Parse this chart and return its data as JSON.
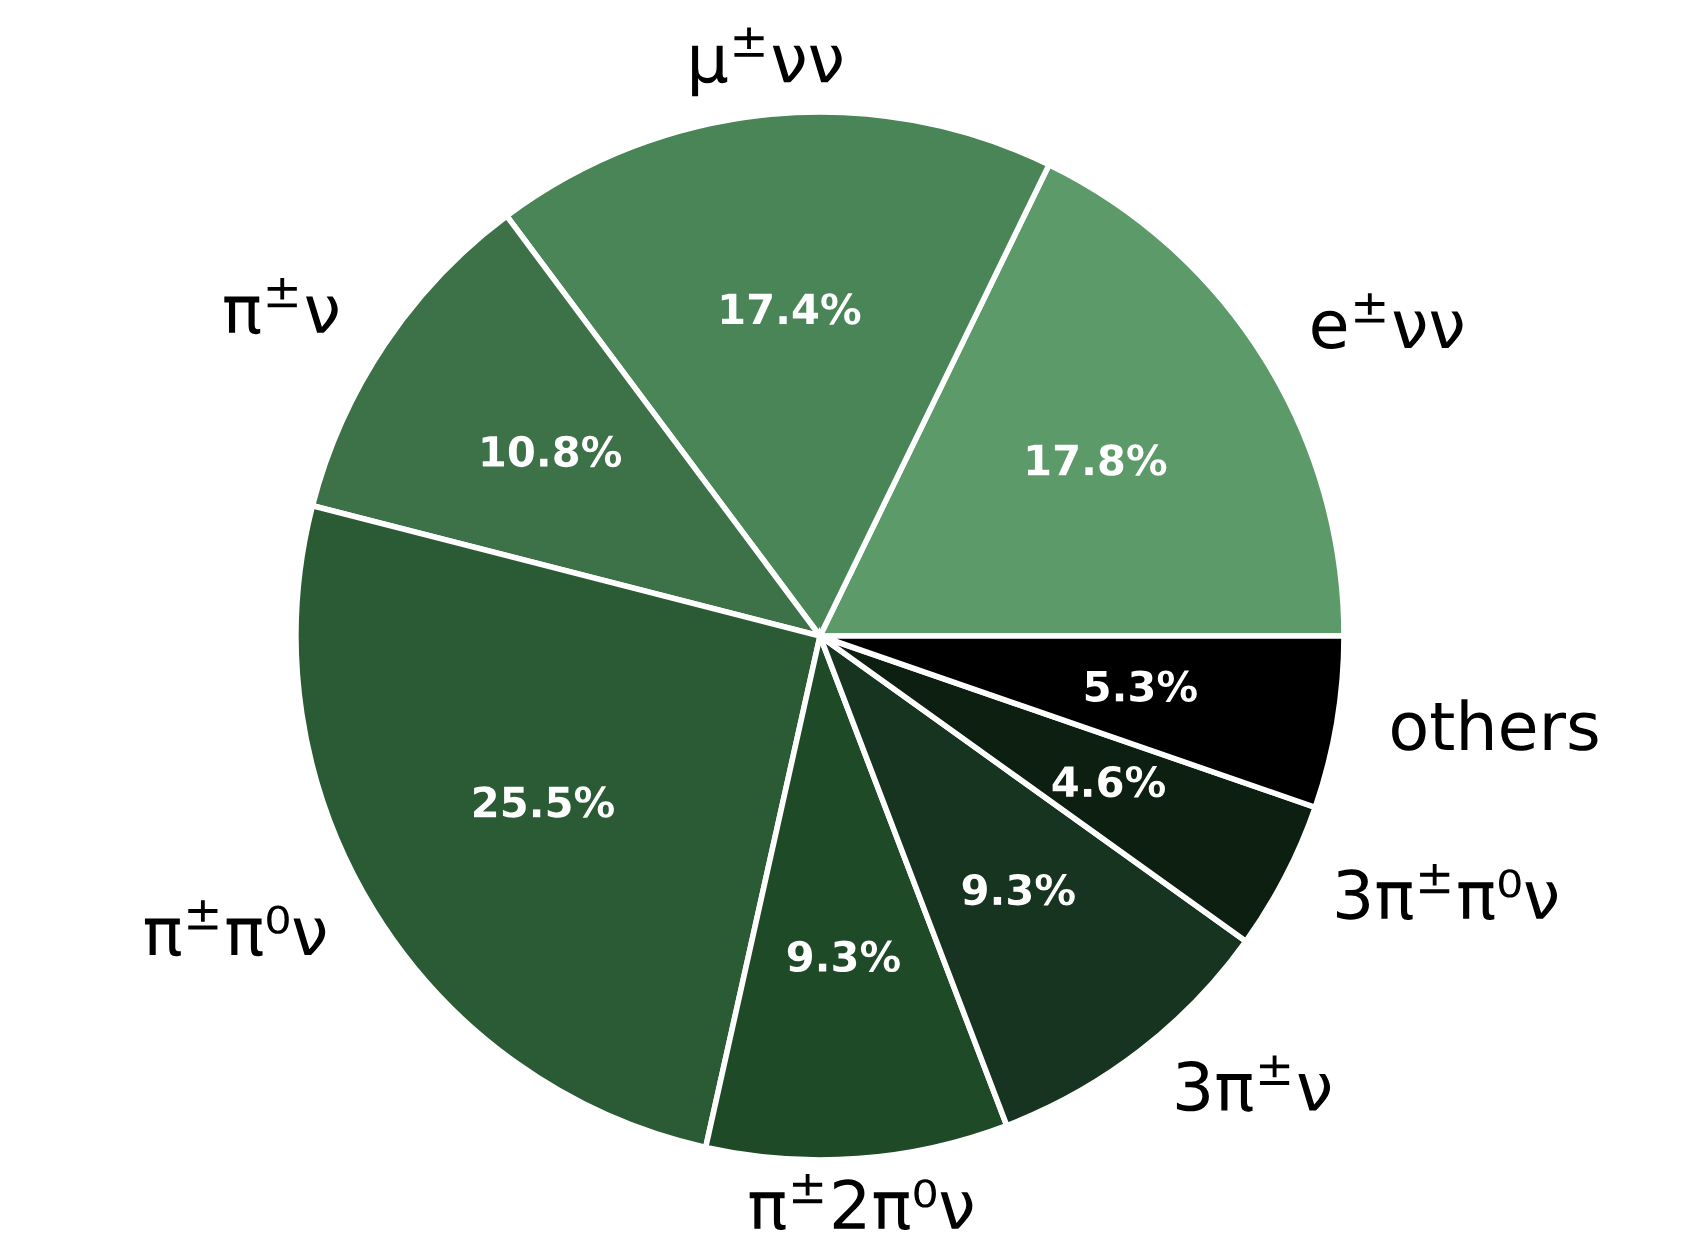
{
  "chart_data": {
    "type": "pie",
    "categories": [
      "e$^{±}$νν",
      "μ$^{±}$νν",
      "π$^{±}$ν",
      "π$^{±}$π⁰ν",
      "π$^{±}$2π⁰ν",
      "3π$^{±}$ν",
      "3π$^{±}$π⁰ν",
      "others"
    ],
    "values": [
      17.8,
      17.4,
      10.8,
      25.5,
      9.3,
      9.3,
      4.6,
      5.3
    ],
    "value_labels": [
      "17.8%",
      "17.4%",
      "10.8%",
      "25.5%",
      "9.3%",
      "9.3%",
      "4.6%",
      "5.3%"
    ],
    "colors": [
      "#5c9a6a",
      "#4a8558",
      "#3d7249",
      "#2b5b34",
      "#1f4a28",
      "#163420",
      "#0c1f10",
      "#000000"
    ]
  }
}
